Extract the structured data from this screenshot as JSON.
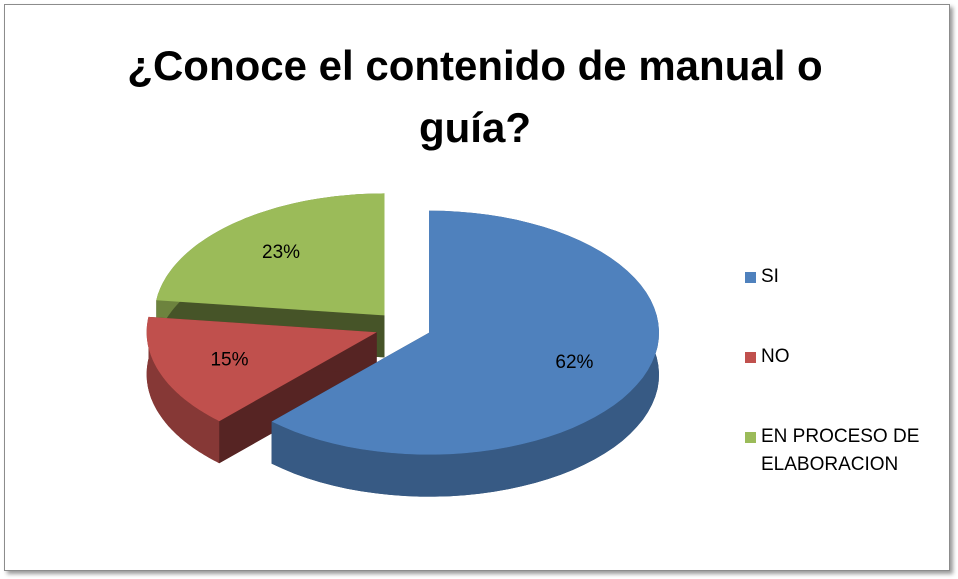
{
  "chart_data": {
    "type": "pie3d",
    "title": "¿Conoce el contenido de manual o guía?",
    "categories": [
      "SI",
      "NO",
      "EN PROCESO DE ELABORACION"
    ],
    "values": [
      62,
      15,
      23
    ],
    "value_labels": [
      "62%",
      "15%",
      "23%"
    ],
    "colors": [
      "#4f81bd",
      "#c0504d",
      "#9bbb59"
    ],
    "legend": "right"
  }
}
